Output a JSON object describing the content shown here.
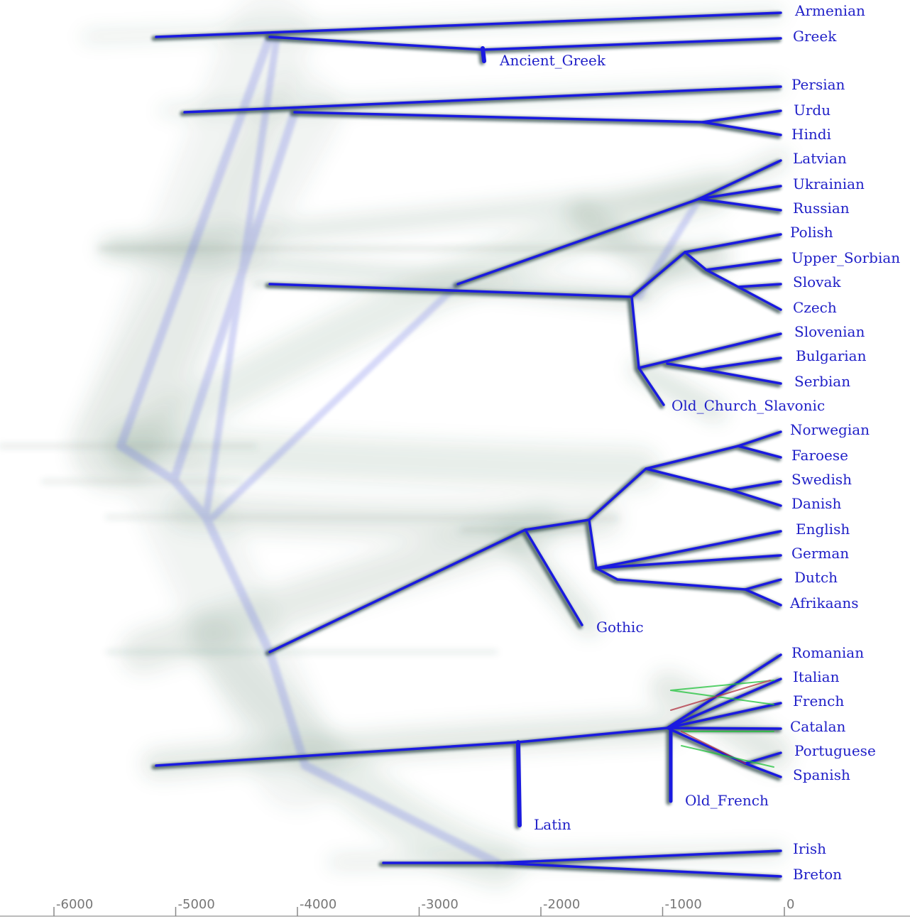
{
  "colors": {
    "branch": "#1a1ae0",
    "branch_dark": "#1c3a3a",
    "cloud": "#2f5e3e",
    "ancestor": "#6f78e8",
    "label": "#2020c8",
    "axis": "#888888"
  },
  "axis": {
    "unit": "years",
    "range": [
      -6500,
      0
    ],
    "ticks": [
      "-6000",
      "-5000",
      "-4000",
      "-3000",
      "-2000",
      "-1000",
      "0"
    ],
    "tick_values": [
      -6000,
      -5000,
      -4000,
      -3000,
      -2000,
      -1000,
      0
    ]
  },
  "leaves": [
    {
      "name": "Armenian",
      "time": 0
    },
    {
      "name": "Greek",
      "time": 0
    },
    {
      "name": "Ancient_Greek",
      "time": -2600
    },
    {
      "name": "Persian",
      "time": 0
    },
    {
      "name": "Urdu",
      "time": 0
    },
    {
      "name": "Hindi",
      "time": 0
    },
    {
      "name": "Latvian",
      "time": 0
    },
    {
      "name": "Ukrainian",
      "time": 0
    },
    {
      "name": "Russian",
      "time": 0
    },
    {
      "name": "Polish",
      "time": 0
    },
    {
      "name": "Upper_Sorbian",
      "time": 0
    },
    {
      "name": "Slovak",
      "time": 0
    },
    {
      "name": "Czech",
      "time": 0
    },
    {
      "name": "Slovenian",
      "time": 0
    },
    {
      "name": "Bulgarian",
      "time": 0
    },
    {
      "name": "Serbian",
      "time": 0
    },
    {
      "name": "Old_Church_Slavonic",
      "time": -1000
    },
    {
      "name": "Norwegian",
      "time": 0
    },
    {
      "name": "Faroese",
      "time": 0
    },
    {
      "name": "Swedish",
      "time": 0
    },
    {
      "name": "Danish",
      "time": 0
    },
    {
      "name": "English",
      "time": 0
    },
    {
      "name": "German",
      "time": 0
    },
    {
      "name": "Dutch",
      "time": 0
    },
    {
      "name": "Afrikaans",
      "time": 0
    },
    {
      "name": "Gothic",
      "time": -1650
    },
    {
      "name": "Romanian",
      "time": 0
    },
    {
      "name": "Italian",
      "time": 0
    },
    {
      "name": "French",
      "time": 0
    },
    {
      "name": "Catalan",
      "time": 0
    },
    {
      "name": "Portuguese",
      "time": 0
    },
    {
      "name": "Spanish",
      "time": 0
    },
    {
      "name": "Old_French",
      "time": -950
    },
    {
      "name": "Latin",
      "time": -2200
    },
    {
      "name": "Irish",
      "time": 0
    },
    {
      "name": "Breton",
      "time": 0
    }
  ]
}
